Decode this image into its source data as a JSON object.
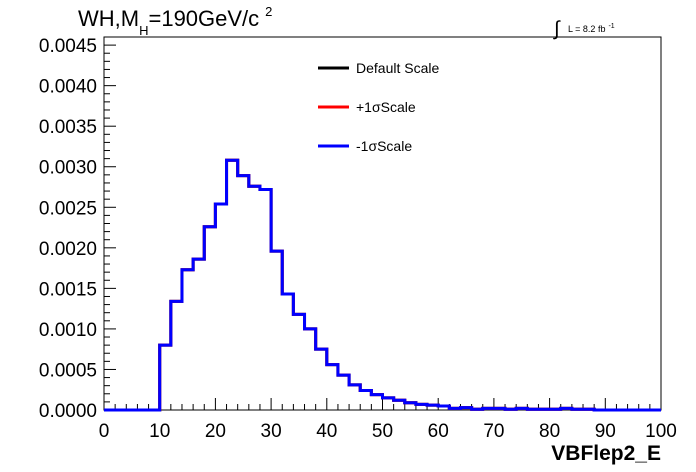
{
  "title": {
    "prefix": "WH,M",
    "subscript": "H",
    "middle": "=190GeV/c",
    "superscript": "2"
  },
  "luminosity": {
    "integral_symbol": "∫",
    "label": "L = 8.2 fb",
    "exponent": "-1"
  },
  "chart_data": {
    "type": "line",
    "drawstyle": "step-histogram",
    "xlabel": "VBFlep2_E",
    "ylabel": "",
    "xlim": [
      0,
      100
    ],
    "ylim": [
      0,
      0.0046
    ],
    "x_ticks": [
      "0",
      "10",
      "20",
      "30",
      "40",
      "50",
      "60",
      "70",
      "80",
      "90",
      "100"
    ],
    "y_ticks": [
      "0.0000",
      "0.0005",
      "0.0010",
      "0.0015",
      "0.0020",
      "0.0025",
      "0.0030",
      "0.0035",
      "0.0040",
      "0.0045"
    ],
    "bin_edges": [
      0,
      2,
      4,
      6,
      8,
      10,
      12,
      14,
      16,
      18,
      20,
      22,
      24,
      26,
      28,
      30,
      32,
      34,
      36,
      38,
      40,
      42,
      44,
      46,
      48,
      50,
      52,
      54,
      56,
      58,
      60,
      62,
      64,
      66,
      68,
      70,
      72,
      74,
      76,
      78,
      80,
      82,
      84,
      86,
      88,
      90,
      92,
      94,
      96,
      98,
      100
    ],
    "series": [
      {
        "name": "Default Scale",
        "color": "#000000",
        "values": [
          0,
          0,
          0,
          0,
          0,
          0.0008,
          0.00134,
          0.00173,
          0.00186,
          0.00226,
          0.00254,
          0.00308,
          0.00289,
          0.00276,
          0.00272,
          0.00196,
          0.00143,
          0.00118,
          0.001,
          0.00075,
          0.00056,
          0.00043,
          0.00031,
          0.00024,
          0.00019,
          0.00015,
          0.00012,
          9e-05,
          7e-05,
          6e-05,
          5e-05,
          2e-05,
          3e-05,
          1e-05,
          2e-05,
          2e-05,
          1e-05,
          2e-05,
          1e-05,
          1e-05,
          1e-05,
          2e-05,
          1e-05,
          1e-05,
          0,
          0,
          0,
          0,
          0,
          0
        ]
      },
      {
        "name": "+1σScale",
        "color": "#ff0000",
        "values": [
          0,
          0,
          0,
          0,
          0,
          0.0008,
          0.00134,
          0.00173,
          0.00186,
          0.00226,
          0.00254,
          0.00308,
          0.00289,
          0.00276,
          0.00272,
          0.00196,
          0.00143,
          0.00118,
          0.001,
          0.00075,
          0.00056,
          0.00043,
          0.00031,
          0.00024,
          0.00019,
          0.00015,
          0.00012,
          9e-05,
          7e-05,
          6e-05,
          5e-05,
          2e-05,
          3e-05,
          1e-05,
          2e-05,
          2e-05,
          1e-05,
          2e-05,
          1e-05,
          1e-05,
          1e-05,
          2e-05,
          1e-05,
          1e-05,
          0,
          0,
          0,
          0,
          0,
          0
        ]
      },
      {
        "name": "-1σScale",
        "color": "#0000ff",
        "values": [
          0,
          0,
          0,
          0,
          0,
          0.0008,
          0.00134,
          0.00173,
          0.00186,
          0.00226,
          0.00254,
          0.00308,
          0.00289,
          0.00276,
          0.00272,
          0.00196,
          0.00143,
          0.00118,
          0.001,
          0.00075,
          0.00056,
          0.00043,
          0.00031,
          0.00024,
          0.00019,
          0.00015,
          0.00012,
          9e-05,
          7e-05,
          6e-05,
          5e-05,
          2e-05,
          3e-05,
          1e-05,
          2e-05,
          2e-05,
          1e-05,
          2e-05,
          1e-05,
          1e-05,
          1e-05,
          2e-05,
          1e-05,
          1e-05,
          0,
          0,
          0,
          0,
          0,
          0
        ]
      }
    ],
    "legend_position": "top-right",
    "grid": false
  }
}
